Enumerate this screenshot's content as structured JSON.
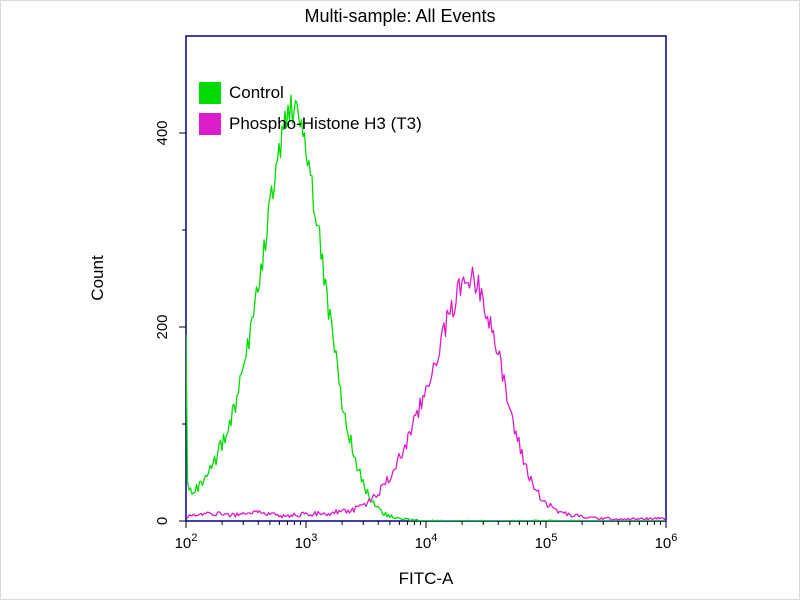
{
  "title": "Multi-sample: All Events",
  "colors": {
    "plot_border": "#00008b",
    "tick": "#000000",
    "background": "#ffffff",
    "control_green": "#00dc00",
    "phospho_magenta": "#dd1ccd"
  },
  "chart_data": {
    "type": "line",
    "subtype": "flow-cytometry-histogram-overlay",
    "title": "Multi-sample: All Events",
    "xlabel": "FITC-A",
    "ylabel": "Count",
    "x_axis": {
      "label": "FITC-A",
      "scale": "log10",
      "min_exp": 2,
      "max_exp": 6,
      "tick_exponents": [
        2,
        3,
        4,
        5,
        6
      ]
    },
    "y_axis": {
      "label": "Count",
      "min": 0,
      "max": 500,
      "ticks": [
        0,
        200,
        400
      ],
      "minor_step": 100
    },
    "legend_position": "top-left-inside",
    "grid": false,
    "legend": [
      {
        "label": "Control",
        "color": "#00dc00"
      },
      {
        "label": "Phospho-Histone H3 (T3)",
        "color": "#dd1ccd"
      }
    ],
    "series": [
      {
        "name": "Control",
        "color": "#00dc00",
        "peak": {
          "x_log10": 2.9,
          "count": 430
        },
        "points": [
          [
            2.0,
            190
          ],
          [
            2.01,
            40
          ],
          [
            2.05,
            30
          ],
          [
            2.1,
            35
          ],
          [
            2.15,
            45
          ],
          [
            2.2,
            55
          ],
          [
            2.25,
            65
          ],
          [
            2.3,
            80
          ],
          [
            2.35,
            95
          ],
          [
            2.4,
            115
          ],
          [
            2.45,
            140
          ],
          [
            2.5,
            170
          ],
          [
            2.55,
            200
          ],
          [
            2.6,
            240
          ],
          [
            2.65,
            280
          ],
          [
            2.7,
            320
          ],
          [
            2.75,
            360
          ],
          [
            2.8,
            395
          ],
          [
            2.85,
            420
          ],
          [
            2.9,
            430
          ],
          [
            2.95,
            415
          ],
          [
            3.0,
            385
          ],
          [
            3.05,
            345
          ],
          [
            3.1,
            300
          ],
          [
            3.15,
            255
          ],
          [
            3.2,
            210
          ],
          [
            3.25,
            165
          ],
          [
            3.3,
            125
          ],
          [
            3.35,
            95
          ],
          [
            3.4,
            68
          ],
          [
            3.45,
            48
          ],
          [
            3.5,
            32
          ],
          [
            3.55,
            20
          ],
          [
            3.6,
            13
          ],
          [
            3.65,
            8
          ],
          [
            3.7,
            5
          ],
          [
            3.8,
            2
          ],
          [
            3.9,
            1
          ],
          [
            4.0,
            0
          ],
          [
            6.0,
            0
          ]
        ]
      },
      {
        "name": "Phospho-Histone H3 (T3)",
        "color": "#dd1ccd",
        "peak": {
          "x_log10": 4.35,
          "count": 252
        },
        "points": [
          [
            2.0,
            4
          ],
          [
            2.2,
            8
          ],
          [
            2.4,
            6
          ],
          [
            2.6,
            9
          ],
          [
            2.8,
            5
          ],
          [
            3.0,
            7
          ],
          [
            3.2,
            8
          ],
          [
            3.4,
            12
          ],
          [
            3.5,
            18
          ],
          [
            3.6,
            28
          ],
          [
            3.7,
            45
          ],
          [
            3.8,
            70
          ],
          [
            3.9,
            100
          ],
          [
            4.0,
            135
          ],
          [
            4.1,
            175
          ],
          [
            4.2,
            215
          ],
          [
            4.3,
            245
          ],
          [
            4.35,
            252
          ],
          [
            4.4,
            248
          ],
          [
            4.45,
            240
          ],
          [
            4.5,
            222
          ],
          [
            4.55,
            200
          ],
          [
            4.6,
            172
          ],
          [
            4.65,
            142
          ],
          [
            4.7,
            115
          ],
          [
            4.75,
            90
          ],
          [
            4.8,
            68
          ],
          [
            4.85,
            50
          ],
          [
            4.9,
            35
          ],
          [
            5.0,
            18
          ],
          [
            5.1,
            10
          ],
          [
            5.2,
            6
          ],
          [
            5.4,
            3
          ],
          [
            5.6,
            2
          ],
          [
            5.8,
            2
          ],
          [
            6.0,
            3
          ]
        ]
      }
    ]
  }
}
